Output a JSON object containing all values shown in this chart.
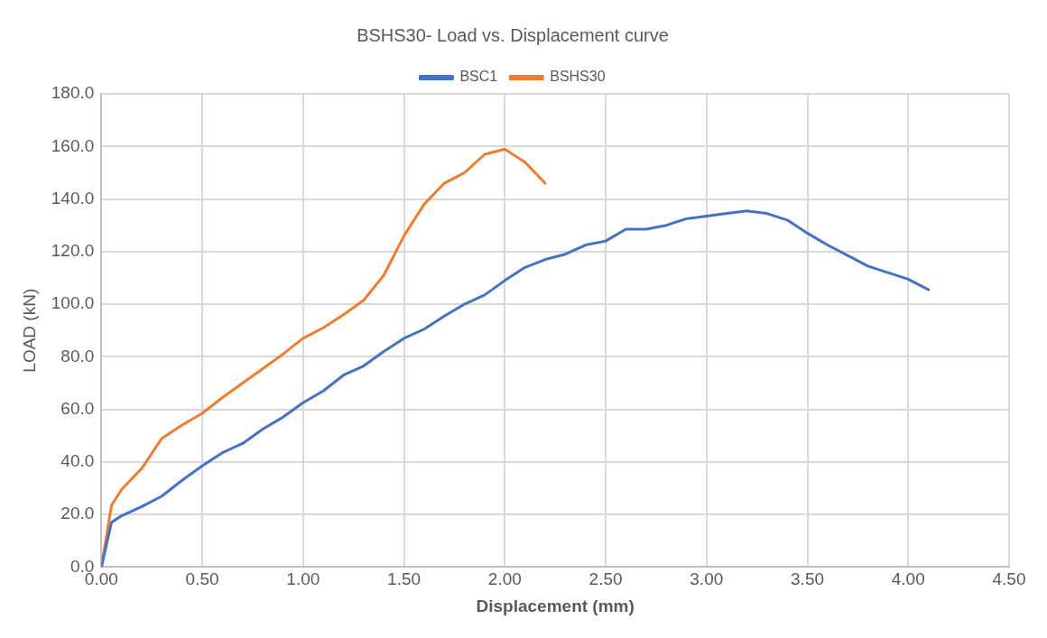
{
  "chart_data": {
    "type": "line",
    "title": "BSHS30- Load vs. Displacement curve",
    "xlabel": "Displacement (mm)",
    "ylabel": "LOAD (kN)",
    "legend": "top",
    "grid": true,
    "marker": "none",
    "line_style": "solid",
    "xlim": [
      0,
      4.5
    ],
    "ylim": [
      0,
      180
    ],
    "xticks": [
      {
        "value": 0,
        "label": "0.00"
      },
      {
        "value": 0.5,
        "label": "0.50"
      },
      {
        "value": 1,
        "label": "1.00"
      },
      {
        "value": 1.5,
        "label": "1.50"
      },
      {
        "value": 2,
        "label": "2.00"
      },
      {
        "value": 2.5,
        "label": "2.50"
      },
      {
        "value": 3,
        "label": "3.00"
      },
      {
        "value": 3.5,
        "label": "3.50"
      },
      {
        "value": 4,
        "label": "4.00"
      },
      {
        "value": 4.5,
        "label": "4.50"
      }
    ],
    "yticks": [
      {
        "value": 0,
        "label": "0.0"
      },
      {
        "value": 20,
        "label": "20.0"
      },
      {
        "value": 40,
        "label": "40.0"
      },
      {
        "value": 60,
        "label": "60.0"
      },
      {
        "value": 80,
        "label": "80.0"
      },
      {
        "value": 100,
        "label": "100.0"
      },
      {
        "value": 120,
        "label": "120.0"
      },
      {
        "value": 140,
        "label": "140.0"
      },
      {
        "value": 160,
        "label": "160.0"
      },
      {
        "value": 180,
        "label": "180.0"
      }
    ],
    "series": [
      {
        "name": "BSC1",
        "color": "#4472c4",
        "x": [
          0,
          0.05,
          0.1,
          0.2,
          0.3,
          0.4,
          0.5,
          0.6,
          0.7,
          0.8,
          0.9,
          1.0,
          1.1,
          1.2,
          1.3,
          1.4,
          1.5,
          1.6,
          1.7,
          1.8,
          1.9,
          2.0,
          2.1,
          2.2,
          2.3,
          2.4,
          2.5,
          2.6,
          2.7,
          2.8,
          2.9,
          3.0,
          3.1,
          3.2,
          3.3,
          3.4,
          3.5,
          3.6,
          3.7,
          3.8,
          3.9,
          4.0,
          4.1
        ],
        "values": [
          0,
          17,
          19.5,
          23,
          27,
          33,
          38.5,
          43.5,
          47,
          52.5,
          57,
          62.5,
          67,
          73,
          76.5,
          82,
          87,
          90.5,
          95.5,
          100,
          103.5,
          109,
          114,
          117,
          119,
          122.5,
          124,
          128.5,
          128.5,
          130,
          132.5,
          133.5,
          134.5,
          135.5,
          134.5,
          132,
          127,
          122.5,
          118.5,
          114.5,
          112,
          109.5,
          105.5
        ]
      },
      {
        "name": "BSHS30",
        "color": "#ed7d31",
        "x": [
          0,
          0.05,
          0.1,
          0.2,
          0.3,
          0.4,
          0.5,
          0.6,
          0.7,
          0.8,
          0.9,
          1.0,
          1.1,
          1.2,
          1.3,
          1.4,
          1.5,
          1.6,
          1.7,
          1.8,
          1.9,
          2.0,
          2.1,
          2.2
        ],
        "values": [
          0,
          23.5,
          29.5,
          37.5,
          49,
          54,
          58.5,
          64.5,
          70,
          75.5,
          81,
          87,
          91,
          96,
          101.5,
          111,
          126,
          138,
          146,
          150,
          157,
          159,
          154,
          146
        ]
      }
    ]
  }
}
